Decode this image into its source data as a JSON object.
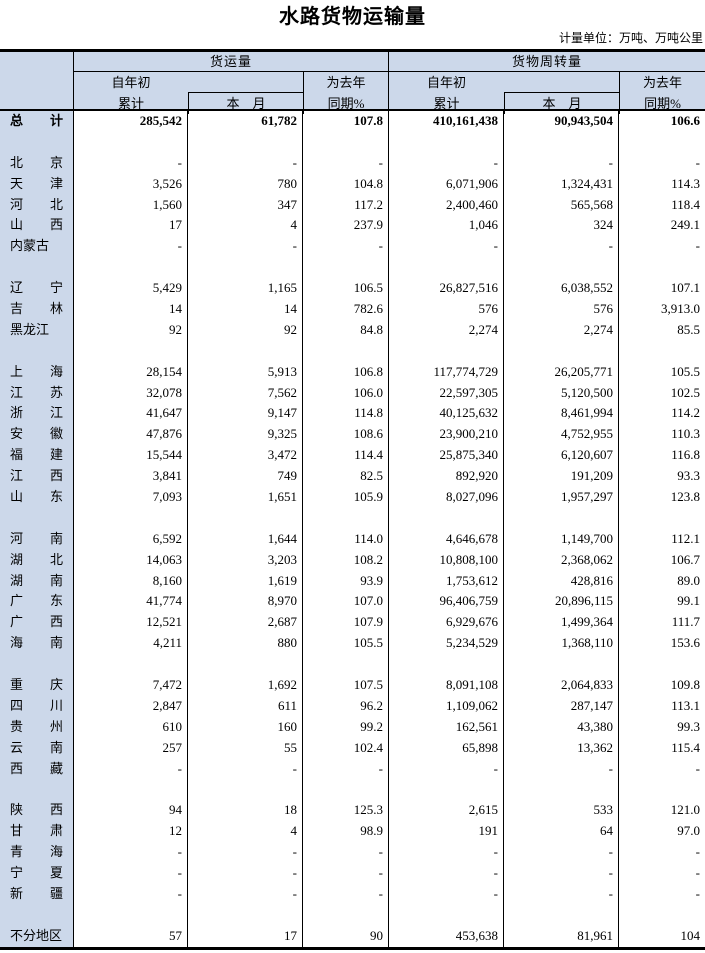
{
  "title": "水路货物运输量",
  "unit_note": "计量单位：万吨、万吨公里",
  "colors": {
    "header_bg": "#ccd8ea",
    "border": "#000000",
    "text": "#000000"
  },
  "table": {
    "sections": [
      {
        "label": "货运量"
      },
      {
        "label": "货物周转量"
      }
    ],
    "subheaders": {
      "cumulative_line1": "自年初",
      "cumulative_line2": "累计",
      "month": "本　月",
      "yoy_line1": "为去年",
      "yoy_line2": "同期%"
    },
    "rows": [
      {
        "region": "总计",
        "bold": true,
        "values": [
          "285,542",
          "61,782",
          "107.8",
          "410,161,438",
          "90,943,504",
          "106.6"
        ]
      },
      {
        "spacer": true
      },
      {
        "region": "北京",
        "values": [
          "-",
          "-",
          "-",
          "-",
          "-",
          "-"
        ]
      },
      {
        "region": "天津",
        "values": [
          "3,526",
          "780",
          "104.8",
          "6,071,906",
          "1,324,431",
          "114.3"
        ]
      },
      {
        "region": "河北",
        "values": [
          "1,560",
          "347",
          "117.2",
          "2,400,460",
          "565,568",
          "118.4"
        ]
      },
      {
        "region": "山西",
        "values": [
          "17",
          "4",
          "237.9",
          "1,046",
          "324",
          "249.1"
        ]
      },
      {
        "region": "内蒙古",
        "values": [
          "-",
          "-",
          "-",
          "-",
          "-",
          "-"
        ]
      },
      {
        "spacer": true
      },
      {
        "region": "辽宁",
        "values": [
          "5,429",
          "1,165",
          "106.5",
          "26,827,516",
          "6,038,552",
          "107.1"
        ]
      },
      {
        "region": "吉林",
        "values": [
          "14",
          "14",
          "782.6",
          "576",
          "576",
          "3,913.0"
        ]
      },
      {
        "region": "黑龙江",
        "values": [
          "92",
          "92",
          "84.8",
          "2,274",
          "2,274",
          "85.5"
        ]
      },
      {
        "spacer": true
      },
      {
        "region": "上海",
        "values": [
          "28,154",
          "5,913",
          "106.8",
          "117,774,729",
          "26,205,771",
          "105.5"
        ]
      },
      {
        "region": "江苏",
        "values": [
          "32,078",
          "7,562",
          "106.0",
          "22,597,305",
          "5,120,500",
          "102.5"
        ]
      },
      {
        "region": "浙江",
        "values": [
          "41,647",
          "9,147",
          "114.8",
          "40,125,632",
          "8,461,994",
          "114.2"
        ]
      },
      {
        "region": "安徽",
        "values": [
          "47,876",
          "9,325",
          "108.6",
          "23,900,210",
          "4,752,955",
          "110.3"
        ]
      },
      {
        "region": "福建",
        "values": [
          "15,544",
          "3,472",
          "114.4",
          "25,875,340",
          "6,120,607",
          "116.8"
        ]
      },
      {
        "region": "江西",
        "values": [
          "3,841",
          "749",
          "82.5",
          "892,920",
          "191,209",
          "93.3"
        ]
      },
      {
        "region": "山东",
        "values": [
          "7,093",
          "1,651",
          "105.9",
          "8,027,096",
          "1,957,297",
          "123.8"
        ]
      },
      {
        "spacer": true
      },
      {
        "region": "河南",
        "values": [
          "6,592",
          "1,644",
          "114.0",
          "4,646,678",
          "1,149,700",
          "112.1"
        ]
      },
      {
        "region": "湖北",
        "values": [
          "14,063",
          "3,203",
          "108.2",
          "10,808,100",
          "2,368,062",
          "106.7"
        ]
      },
      {
        "region": "湖南",
        "values": [
          "8,160",
          "1,619",
          "93.9",
          "1,753,612",
          "428,816",
          "89.0"
        ]
      },
      {
        "region": "广东",
        "values": [
          "41,774",
          "8,970",
          "107.0",
          "96,406,759",
          "20,896,115",
          "99.1"
        ]
      },
      {
        "region": "广西",
        "values": [
          "12,521",
          "2,687",
          "107.9",
          "6,929,676",
          "1,499,364",
          "111.7"
        ]
      },
      {
        "region": "海南",
        "values": [
          "4,211",
          "880",
          "105.5",
          "5,234,529",
          "1,368,110",
          "153.6"
        ]
      },
      {
        "spacer": true
      },
      {
        "region": "重庆",
        "values": [
          "7,472",
          "1,692",
          "107.5",
          "8,091,108",
          "2,064,833",
          "109.8"
        ]
      },
      {
        "region": "四川",
        "values": [
          "2,847",
          "611",
          "96.2",
          "1,109,062",
          "287,147",
          "113.1"
        ]
      },
      {
        "region": "贵州",
        "values": [
          "610",
          "160",
          "99.2",
          "162,561",
          "43,380",
          "99.3"
        ]
      },
      {
        "region": "云南",
        "values": [
          "257",
          "55",
          "102.4",
          "65,898",
          "13,362",
          "115.4"
        ]
      },
      {
        "region": "西藏",
        "values": [
          "-",
          "-",
          "-",
          "-",
          "-",
          "-"
        ]
      },
      {
        "spacer": true
      },
      {
        "region": "陕西",
        "values": [
          "94",
          "18",
          "125.3",
          "2,615",
          "533",
          "121.0"
        ]
      },
      {
        "region": "甘肃",
        "values": [
          "12",
          "4",
          "98.9",
          "191",
          "64",
          "97.0"
        ]
      },
      {
        "region": "青海",
        "values": [
          "-",
          "-",
          "-",
          "-",
          "-",
          "-"
        ]
      },
      {
        "region": "宁夏",
        "values": [
          "-",
          "-",
          "-",
          "-",
          "-",
          "-"
        ]
      },
      {
        "region": "新疆",
        "values": [
          "-",
          "-",
          "-",
          "-",
          "-",
          "-"
        ]
      },
      {
        "spacer": true
      },
      {
        "region": "不分地区",
        "values": [
          "57",
          "17",
          "90",
          "453,638",
          "81,961",
          "104"
        ]
      }
    ]
  }
}
